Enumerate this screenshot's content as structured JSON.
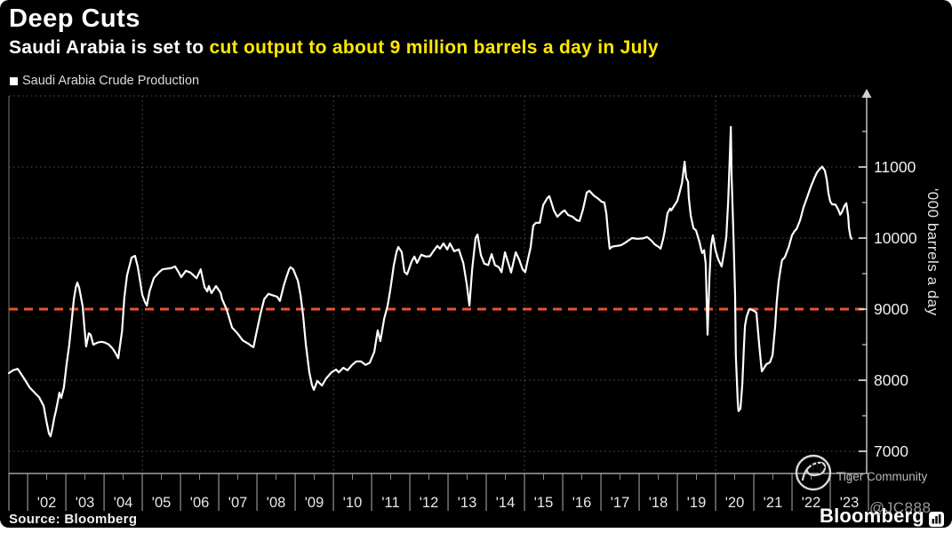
{
  "header": {
    "title": "Deep Cuts",
    "subtitle_plain": "Saudi Arabia is set to ",
    "subtitle_highlight": "cut output to about 9 million barrels a day in July",
    "legend_label": "Saudi Arabia Crude Production"
  },
  "footer": {
    "source": "Source: Bloomberg",
    "bloomberg": "Bloomberg"
  },
  "watermarks": {
    "community": "Tiger Community",
    "handle": "@JC888"
  },
  "colors": {
    "background": "#000000",
    "line": "#ffffff",
    "reference_line": "#e8542e",
    "highlight_text": "#ffe800",
    "grid": "#666666",
    "axis": "#c8c8c8"
  },
  "chart_data": {
    "type": "line",
    "title": "Deep Cuts",
    "subtitle": "Saudi Arabia is set to cut output to about 9 million barrels a day in July",
    "series_name": "Saudi Arabia Crude Production",
    "ylabel": "'000 barrels a day",
    "xlabel": "",
    "legend_position": "top-left",
    "grid": "dotted",
    "xlim": [
      2001.51,
      2023.953
    ],
    "ylim": [
      6687.5,
      12000
    ],
    "y_major_ticks": [
      7000,
      8000,
      9000,
      10000,
      11000
    ],
    "y_minor_ticks": [
      7500,
      8500,
      9500,
      10500,
      11500
    ],
    "ygrid_values": [
      7000,
      8000,
      10000,
      11000,
      12000
    ],
    "xgrid_years": [
      2005,
      2010,
      2015,
      2020
    ],
    "x_tick_years": [
      2002,
      2003,
      2004,
      2005,
      2006,
      2007,
      2008,
      2009,
      2010,
      2011,
      2012,
      2013,
      2014,
      2015,
      2016,
      2017,
      2018,
      2019,
      2020,
      2021,
      2022,
      2023
    ],
    "x_tick_labels": [
      "'02",
      "'03",
      "'04",
      "'05",
      "'06",
      "'07",
      "'08",
      "'09",
      "'10",
      "'11",
      "'12",
      "'13",
      "'14",
      "'15",
      "'16",
      "'17",
      "'18",
      "'19",
      "'20",
      "'21",
      "'22",
      "'23"
    ],
    "reference_line": {
      "value": 9000,
      "style": "dashed",
      "color": "#e8542e"
    },
    "points": [
      [
        2001.51,
        8100
      ],
      [
        2001.62,
        8140
      ],
      [
        2001.74,
        8160
      ],
      [
        2001.9,
        8030
      ],
      [
        2002.05,
        7900
      ],
      [
        2002.21,
        7810
      ],
      [
        2002.3,
        7760
      ],
      [
        2002.42,
        7640
      ],
      [
        2002.49,
        7430
      ],
      [
        2002.56,
        7250
      ],
      [
        2002.6,
        7210
      ],
      [
        2002.65,
        7330
      ],
      [
        2002.7,
        7480
      ],
      [
        2002.74,
        7570
      ],
      [
        2002.79,
        7700
      ],
      [
        2002.83,
        7825
      ],
      [
        2002.88,
        7750
      ],
      [
        2002.95,
        7900
      ],
      [
        2003.02,
        8225
      ],
      [
        2003.09,
        8500
      ],
      [
        2003.14,
        8765
      ],
      [
        2003.21,
        9140
      ],
      [
        2003.26,
        9300
      ],
      [
        2003.3,
        9375
      ],
      [
        2003.35,
        9300
      ],
      [
        2003.44,
        9040
      ],
      [
        2003.49,
        8725
      ],
      [
        2003.53,
        8475
      ],
      [
        2003.6,
        8660
      ],
      [
        2003.65,
        8640
      ],
      [
        2003.72,
        8500
      ],
      [
        2003.83,
        8530
      ],
      [
        2003.93,
        8540
      ],
      [
        2004.02,
        8530
      ],
      [
        2004.12,
        8505
      ],
      [
        2004.23,
        8440
      ],
      [
        2004.3,
        8380
      ],
      [
        2004.37,
        8310
      ],
      [
        2004.47,
        8690
      ],
      [
        2004.53,
        9165
      ],
      [
        2004.6,
        9475
      ],
      [
        2004.67,
        9620
      ],
      [
        2004.72,
        9725
      ],
      [
        2004.81,
        9750
      ],
      [
        2004.88,
        9600
      ],
      [
        2004.93,
        9435
      ],
      [
        2005.0,
        9200
      ],
      [
        2005.07,
        9100
      ],
      [
        2005.12,
        9050
      ],
      [
        2005.19,
        9250
      ],
      [
        2005.3,
        9435
      ],
      [
        2005.44,
        9520
      ],
      [
        2005.53,
        9560
      ],
      [
        2005.65,
        9570
      ],
      [
        2005.74,
        9575
      ],
      [
        2005.86,
        9600
      ],
      [
        2005.95,
        9520
      ],
      [
        2006.02,
        9450
      ],
      [
        2006.14,
        9540
      ],
      [
        2006.26,
        9515
      ],
      [
        2006.42,
        9435
      ],
      [
        2006.53,
        9560
      ],
      [
        2006.63,
        9310
      ],
      [
        2006.7,
        9250
      ],
      [
        2006.74,
        9325
      ],
      [
        2006.81,
        9225
      ],
      [
        2006.93,
        9325
      ],
      [
        2007.05,
        9230
      ],
      [
        2007.09,
        9140
      ],
      [
        2007.21,
        8990
      ],
      [
        2007.35,
        8740
      ],
      [
        2007.49,
        8660
      ],
      [
        2007.63,
        8560
      ],
      [
        2007.77,
        8515
      ],
      [
        2007.86,
        8480
      ],
      [
        2007.91,
        8465
      ],
      [
        2007.98,
        8650
      ],
      [
        2008.09,
        8925
      ],
      [
        2008.19,
        9140
      ],
      [
        2008.3,
        9215
      ],
      [
        2008.44,
        9190
      ],
      [
        2008.53,
        9175
      ],
      [
        2008.6,
        9115
      ],
      [
        2008.7,
        9330
      ],
      [
        2008.77,
        9450
      ],
      [
        2008.84,
        9560
      ],
      [
        2008.88,
        9590
      ],
      [
        2008.95,
        9560
      ],
      [
        2009.07,
        9400
      ],
      [
        2009.14,
        9200
      ],
      [
        2009.21,
        8900
      ],
      [
        2009.28,
        8500
      ],
      [
        2009.37,
        8110
      ],
      [
        2009.44,
        7930
      ],
      [
        2009.49,
        7865
      ],
      [
        2009.58,
        7990
      ],
      [
        2009.7,
        7925
      ],
      [
        2009.81,
        8025
      ],
      [
        2009.95,
        8110
      ],
      [
        2010.07,
        8150
      ],
      [
        2010.14,
        8110
      ],
      [
        2010.26,
        8175
      ],
      [
        2010.37,
        8140
      ],
      [
        2010.49,
        8215
      ],
      [
        2010.6,
        8265
      ],
      [
        2010.72,
        8265
      ],
      [
        2010.84,
        8215
      ],
      [
        2010.95,
        8245
      ],
      [
        2011.07,
        8400
      ],
      [
        2011.16,
        8700
      ],
      [
        2011.23,
        8550
      ],
      [
        2011.33,
        8865
      ],
      [
        2011.42,
        9050
      ],
      [
        2011.49,
        9275
      ],
      [
        2011.58,
        9615
      ],
      [
        2011.65,
        9800
      ],
      [
        2011.7,
        9875
      ],
      [
        2011.79,
        9800
      ],
      [
        2011.86,
        9525
      ],
      [
        2011.93,
        9490
      ],
      [
        2012.05,
        9675
      ],
      [
        2012.12,
        9740
      ],
      [
        2012.19,
        9650
      ],
      [
        2012.3,
        9765
      ],
      [
        2012.42,
        9740
      ],
      [
        2012.53,
        9745
      ],
      [
        2012.63,
        9825
      ],
      [
        2012.72,
        9890
      ],
      [
        2012.79,
        9850
      ],
      [
        2012.88,
        9925
      ],
      [
        2012.98,
        9840
      ],
      [
        2013.05,
        9925
      ],
      [
        2013.16,
        9815
      ],
      [
        2013.28,
        9840
      ],
      [
        2013.4,
        9650
      ],
      [
        2013.49,
        9350
      ],
      [
        2013.56,
        9050
      ],
      [
        2013.63,
        9550
      ],
      [
        2013.72,
        10000
      ],
      [
        2013.77,
        10050
      ],
      [
        2013.86,
        9760
      ],
      [
        2013.95,
        9640
      ],
      [
        2014.05,
        9620
      ],
      [
        2014.14,
        9775
      ],
      [
        2014.23,
        9620
      ],
      [
        2014.33,
        9590
      ],
      [
        2014.4,
        9520
      ],
      [
        2014.49,
        9800
      ],
      [
        2014.58,
        9640
      ],
      [
        2014.65,
        9515
      ],
      [
        2014.77,
        9800
      ],
      [
        2014.86,
        9700
      ],
      [
        2014.95,
        9560
      ],
      [
        2015.02,
        9520
      ],
      [
        2015.09,
        9700
      ],
      [
        2015.16,
        9865
      ],
      [
        2015.23,
        10175
      ],
      [
        2015.3,
        10215
      ],
      [
        2015.4,
        10215
      ],
      [
        2015.49,
        10465
      ],
      [
        2015.6,
        10565
      ],
      [
        2015.65,
        10590
      ],
      [
        2015.77,
        10390
      ],
      [
        2015.86,
        10300
      ],
      [
        2015.98,
        10365
      ],
      [
        2016.05,
        10390
      ],
      [
        2016.14,
        10325
      ],
      [
        2016.26,
        10300
      ],
      [
        2016.37,
        10250
      ],
      [
        2016.44,
        10240
      ],
      [
        2016.53,
        10400
      ],
      [
        2016.63,
        10640
      ],
      [
        2016.7,
        10665
      ],
      [
        2016.81,
        10600
      ],
      [
        2016.95,
        10545
      ],
      [
        2017.02,
        10510
      ],
      [
        2017.09,
        10500
      ],
      [
        2017.14,
        10350
      ],
      [
        2017.19,
        10050
      ],
      [
        2017.23,
        9850
      ],
      [
        2017.3,
        9880
      ],
      [
        2017.42,
        9890
      ],
      [
        2017.53,
        9900
      ],
      [
        2017.65,
        9940
      ],
      [
        2017.81,
        10000
      ],
      [
        2017.95,
        9990
      ],
      [
        2018.09,
        9995
      ],
      [
        2018.21,
        10015
      ],
      [
        2018.33,
        9960
      ],
      [
        2018.4,
        9915
      ],
      [
        2018.51,
        9875
      ],
      [
        2018.56,
        9850
      ],
      [
        2018.63,
        9990
      ],
      [
        2018.67,
        10100
      ],
      [
        2018.74,
        10350
      ],
      [
        2018.81,
        10415
      ],
      [
        2018.84,
        10390
      ],
      [
        2018.91,
        10450
      ],
      [
        2019.0,
        10525
      ],
      [
        2019.07,
        10665
      ],
      [
        2019.12,
        10775
      ],
      [
        2019.19,
        11075
      ],
      [
        2019.23,
        10850
      ],
      [
        2019.28,
        10790
      ],
      [
        2019.3,
        10565
      ],
      [
        2019.35,
        10315
      ],
      [
        2019.42,
        10140
      ],
      [
        2019.49,
        10105
      ],
      [
        2019.58,
        9940
      ],
      [
        2019.63,
        9825
      ],
      [
        2019.65,
        9790
      ],
      [
        2019.7,
        9830
      ],
      [
        2019.74,
        9640
      ],
      [
        2019.79,
        8640
      ],
      [
        2019.84,
        9440
      ],
      [
        2019.88,
        9890
      ],
      [
        2019.93,
        10040
      ],
      [
        2020.0,
        9825
      ],
      [
        2020.07,
        9700
      ],
      [
        2020.16,
        9600
      ],
      [
        2020.23,
        9825
      ],
      [
        2020.28,
        10015
      ],
      [
        2020.33,
        10515
      ],
      [
        2020.37,
        11100
      ],
      [
        2020.4,
        11565
      ],
      [
        2020.42,
        10850
      ],
      [
        2020.47,
        10015
      ],
      [
        2020.51,
        9190
      ],
      [
        2020.53,
        8350
      ],
      [
        2020.58,
        7690
      ],
      [
        2020.6,
        7565
      ],
      [
        2020.65,
        7600
      ],
      [
        2020.7,
        7940
      ],
      [
        2020.74,
        8440
      ],
      [
        2020.77,
        8765
      ],
      [
        2020.81,
        8890
      ],
      [
        2020.88,
        9000
      ],
      [
        2020.95,
        8990
      ],
      [
        2021.02,
        8970
      ],
      [
        2021.07,
        8950
      ],
      [
        2021.09,
        8815
      ],
      [
        2021.14,
        8515
      ],
      [
        2021.19,
        8225
      ],
      [
        2021.21,
        8125
      ],
      [
        2021.26,
        8165
      ],
      [
        2021.33,
        8225
      ],
      [
        2021.42,
        8250
      ],
      [
        2021.49,
        8350
      ],
      [
        2021.56,
        8765
      ],
      [
        2021.6,
        9100
      ],
      [
        2021.65,
        9390
      ],
      [
        2021.7,
        9565
      ],
      [
        2021.74,
        9690
      ],
      [
        2021.81,
        9730
      ],
      [
        2021.91,
        9870
      ],
      [
        2022.0,
        10040
      ],
      [
        2022.07,
        10100
      ],
      [
        2022.12,
        10130
      ],
      [
        2022.21,
        10250
      ],
      [
        2022.3,
        10430
      ],
      [
        2022.4,
        10580
      ],
      [
        2022.49,
        10720
      ],
      [
        2022.58,
        10840
      ],
      [
        2022.65,
        10920
      ],
      [
        2022.72,
        10970
      ],
      [
        2022.79,
        11005
      ],
      [
        2022.86,
        10950
      ],
      [
        2022.91,
        10815
      ],
      [
        2022.95,
        10640
      ],
      [
        2023.0,
        10515
      ],
      [
        2023.05,
        10475
      ],
      [
        2023.14,
        10470
      ],
      [
        2023.21,
        10400
      ],
      [
        2023.26,
        10330
      ],
      [
        2023.3,
        10360
      ],
      [
        2023.37,
        10450
      ],
      [
        2023.42,
        10490
      ],
      [
        2023.47,
        10310
      ],
      [
        2023.49,
        10140
      ],
      [
        2023.53,
        10020
      ],
      [
        2023.56,
        9990
      ]
    ]
  }
}
